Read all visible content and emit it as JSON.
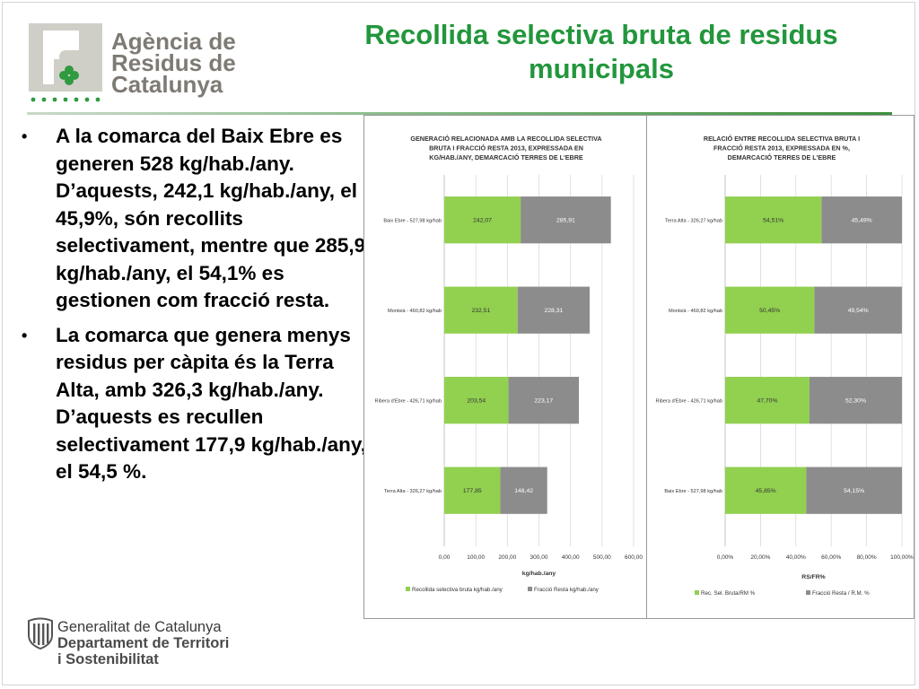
{
  "header": {
    "logo_lines": [
      "Agència de",
      "Residus de",
      "Catalunya"
    ],
    "title": "Recollida selectiva bruta de residus municipals"
  },
  "bullets": [
    "A la comarca del Baix Ebre es generen 528 kg/hab./any. D’aquests, 242,1 kg/hab./any, el 45,9%, són recollits selectivament, mentre que 285,9 kg/hab./any, el 54,1% es gestionen com fracció resta.",
    "La comarca que genera menys residus per càpita és la Terra Alta, amb 326,3 kg/hab./any. D’aquests es recullen selectivament 177,9 kg/hab./any, el 54,5 %."
  ],
  "footer": {
    "lines": [
      "Generalitat de Catalunya",
      "Departament de Territori",
      "i Sostenibilitat"
    ]
  },
  "colors": {
    "green": "#92d050",
    "gray": "#8c8c8c",
    "title_green": "#22963c"
  },
  "chart_data": [
    {
      "type": "bar",
      "orientation": "horizontal",
      "stacked": true,
      "title": "GENERACIÓ RELACIONADA AMB LA RECOLLIDA SELECTIVA BRUTA I FRACCIÓ RESTA 2013, EXPRESSADA EN KG/HAB./ANY, DEMARCACIÓ TERRES DE L'EBRE",
      "categories": [
        "Baix Ebre - 527,98 kg/hab",
        "Montsià - 460,82 kg/hab",
        "Ribera d'Ebre - 426,71 kg/hab",
        "Terra Alta - 326,27 kg/hab"
      ],
      "series": [
        {
          "name": "Recollida selectiva bruta kg/hab./any",
          "values": [
            242.07,
            232.51,
            203.54,
            177.85
          ],
          "labels": [
            "242,07",
            "232,51",
            "203,54",
            "177,85"
          ]
        },
        {
          "name": "Fracció Resta kg/hab./any",
          "values": [
            285.91,
            228.31,
            223.17,
            148.42
          ],
          "labels": [
            "285,91",
            "228,31",
            "223,17",
            "148,42"
          ]
        }
      ],
      "xlabel": "kg/hab./any",
      "xlim": [
        0,
        600
      ],
      "xticks": [
        0,
        100,
        200,
        300,
        400,
        500,
        600
      ],
      "xtick_labels": [
        "0,00",
        "100,00",
        "200,00",
        "300,00",
        "400,00",
        "500,00",
        "600,00"
      ],
      "grid": true,
      "legend": "bottom"
    },
    {
      "type": "bar",
      "orientation": "horizontal",
      "stacked": true,
      "title": "RELACIÓ ENTRE RECOLLIDA SELECTIVA BRUTA I FRACCIÓ RESTA 2013, EXPRESSADA EN %, DEMARCACIÓ TERRES DE L'EBRE",
      "categories": [
        "Terra Alta - 326,27 kg/hab",
        "Montsià - 460,82 kg/hab",
        "Ribera d'Ebre - 426,71 kg/hab",
        "Baix Ebre - 527,98 kg/hab"
      ],
      "series": [
        {
          "name": "Rec. Sel. Bruta/RM %",
          "values": [
            54.51,
            50.45,
            47.7,
            45.85
          ],
          "labels": [
            "54,51%",
            "50,45%",
            "47,70%",
            "45,85%"
          ]
        },
        {
          "name": "Fracció Resta / R.M. %",
          "values": [
            45.49,
            49.54,
            52.3,
            54.15
          ],
          "labels": [
            "45,49%",
            "49,54%",
            "52,30%",
            "54,15%"
          ]
        }
      ],
      "xlabel": "RS/FR%",
      "xlim": [
        0,
        100
      ],
      "xticks": [
        0,
        20,
        40,
        60,
        80,
        100
      ],
      "xtick_labels": [
        "0,00%",
        "20,00%",
        "40,00%",
        "60,00%",
        "80,00%",
        "100,00%"
      ],
      "grid": true,
      "legend": "bottom"
    }
  ]
}
